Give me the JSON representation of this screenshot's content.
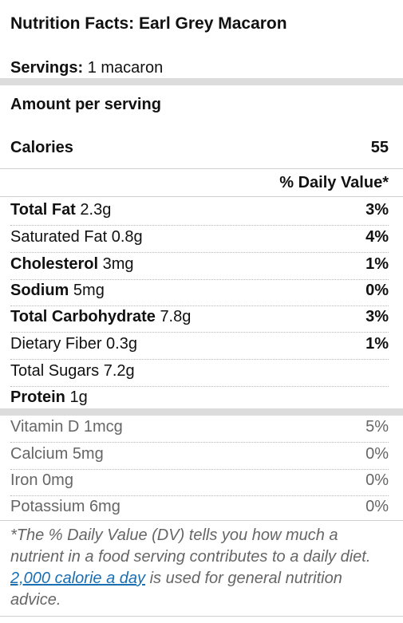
{
  "title": "Nutrition Facts: Earl Grey Macaron",
  "servings": {
    "label": "Servings:",
    "value": "1 macaron"
  },
  "amount_per_serving": "Amount per serving",
  "calories": {
    "label": "Calories",
    "value": "55"
  },
  "daily_value_header": "% Daily Value*",
  "nutrients": [
    {
      "name": "Total Fat",
      "amount": "2.3g",
      "dv": "3%"
    },
    {
      "name": "Saturated Fat",
      "amount": "0.8g",
      "dv": "4%"
    },
    {
      "name": "Cholesterol",
      "amount": "3mg",
      "dv": "1%"
    },
    {
      "name": "Sodium",
      "amount": "5mg",
      "dv": "0%"
    },
    {
      "name": "Total Carbohydrate",
      "amount": "7.8g",
      "dv": "3%"
    },
    {
      "name": "Dietary Fiber",
      "amount": "0.3g",
      "dv": "1%"
    },
    {
      "name": "Total Sugars",
      "amount": "7.2g",
      "dv": ""
    },
    {
      "name": "Protein",
      "amount": "1g",
      "dv": ""
    }
  ],
  "vitamins": [
    {
      "name": "Vitamin D",
      "amount": "1mcg",
      "dv": "5%"
    },
    {
      "name": "Calcium",
      "amount": "5mg",
      "dv": "0%"
    },
    {
      "name": "Iron",
      "amount": "0mg",
      "dv": "0%"
    },
    {
      "name": "Potassium",
      "amount": "6mg",
      "dv": "0%"
    }
  ],
  "footnote": {
    "before": "*The % Daily Value (DV) tells you how much a nutrient in a food serving contributes to a daily diet. ",
    "link": "2,000 calorie a day",
    "after": " is used for general nutrition advice."
  }
}
